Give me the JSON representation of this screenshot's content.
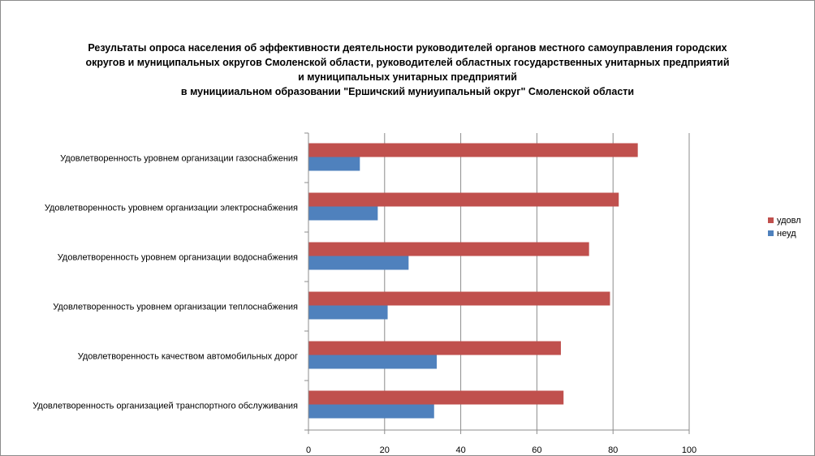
{
  "chart_data": {
    "type": "bar",
    "orientation": "horizontal",
    "title_lines": [
      "Результаты опроса населения об эффективности деятельности руководителей органов местного самоуправления городских",
      "округов и муниципальных округов Смоленской области, руководителей областных государственных унитарных предприятий",
      "и муниципальных унитарных предприятий",
      "в муницииальном образовании \"Ершичский муниуипальный округ\" Смоленской области"
    ],
    "categories": [
      "Удовлетворенность уровнем организации газоснабжения",
      "Удовлетворенность уровнем организации электроснабжения",
      "Удовлетворенность уровнем организации водоснабжения",
      "Удовлетворенность уровнем организации теплоснабжения",
      "Удовлетворенность качеством автомобильных дорог",
      "Удовлетворенность организацией транспортного обслуживания"
    ],
    "series": [
      {
        "name": "удовл",
        "color": "#c0504d",
        "values": [
          86.5,
          81.5,
          73.7,
          79.2,
          66.3,
          67.0
        ]
      },
      {
        "name": "неуд",
        "color": "#4f81bd",
        "values": [
          13.5,
          18.2,
          26.3,
          20.8,
          33.7,
          33.0
        ]
      }
    ],
    "xlim": [
      0,
      100
    ],
    "xticks": [
      0,
      20,
      40,
      60,
      80,
      100
    ],
    "xlabel": "",
    "ylabel": "",
    "grid": "vertical",
    "legend_position": "right"
  }
}
